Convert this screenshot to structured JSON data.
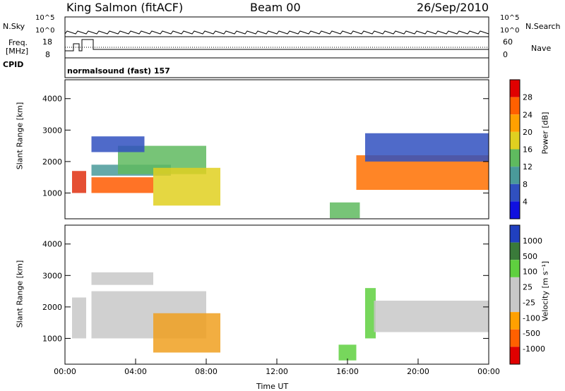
{
  "header": {
    "title": "King Salmon (fitACF)",
    "beam": "Beam 00",
    "date": "26/Sep/2010"
  },
  "strip": {
    "nsky_label": "N.Sky",
    "nsearch_label": "N.Search",
    "freq_label_1": "Freq.",
    "freq_label_2": "[MHz]",
    "nave_label": "Nave",
    "cpid_label": "CPID",
    "cpid_value": "normalsound (fast) 157",
    "nsky_ticks": [
      "10^5",
      "10^0"
    ],
    "nsearch_ticks": [
      "10^5",
      "10^0"
    ],
    "freq_ticks": [
      "18",
      "8"
    ],
    "nave_ticks": [
      "60",
      "0"
    ]
  },
  "chart_data": [
    {
      "type": "heatmap",
      "name": "Power",
      "ylabel": "Slant Range [km]",
      "xlabel": "Time UT",
      "ylim": [
        180,
        4600
      ],
      "xlim_hours": [
        0,
        24
      ],
      "y_ticks": [
        "4000",
        "3000",
        "2000",
        "1000"
      ],
      "y_tick_values": [
        4000,
        3000,
        2000,
        1000
      ],
      "colorbar_label": "Power [dB]",
      "colorbar_ticks": [
        "28",
        "24",
        "20",
        "16",
        "12",
        "8",
        "4"
      ],
      "colorbar_colors": [
        "#e00000",
        "#ff6000",
        "#ffa000",
        "#e0d020",
        "#5fba5f",
        "#4a9a9a",
        "#3050c0",
        "#1010e0"
      ],
      "regions": [
        {
          "t0": 0.4,
          "t1": 1.2,
          "r0": 1000,
          "r1": 1700,
          "color": "#e03010"
        },
        {
          "t0": 1.5,
          "t1": 5.0,
          "r0": 1000,
          "r1": 1500,
          "color": "#ff5a00"
        },
        {
          "t0": 1.5,
          "t1": 6.0,
          "r0": 1550,
          "r1": 1900,
          "color": "#4a9a9a"
        },
        {
          "t0": 3.0,
          "t1": 8.0,
          "r0": 1600,
          "r1": 2500,
          "color": "#5fba5f"
        },
        {
          "t0": 5.0,
          "t1": 8.8,
          "r0": 600,
          "r1": 1800,
          "color": "#e0d020"
        },
        {
          "t0": 1.5,
          "t1": 4.5,
          "r0": 2300,
          "r1": 2800,
          "color": "#3050c0"
        },
        {
          "t0": 15.0,
          "t1": 16.7,
          "r0": 200,
          "r1": 700,
          "color": "#5fba5f"
        },
        {
          "t0": 16.5,
          "t1": 24.0,
          "r0": 1100,
          "r1": 2200,
          "color": "#ff7000"
        },
        {
          "t0": 17.0,
          "t1": 24.0,
          "r0": 2000,
          "r1": 2900,
          "color": "#3050c0"
        }
      ]
    },
    {
      "type": "heatmap",
      "name": "Velocity",
      "ylabel": "Slant Range [km]",
      "xlabel": "Time UT",
      "ylim": [
        180,
        4600
      ],
      "xlim_hours": [
        0,
        24
      ],
      "y_ticks": [
        "4000",
        "3000",
        "2000",
        "1000"
      ],
      "y_tick_values": [
        4000,
        3000,
        2000,
        1000
      ],
      "x_ticks": [
        "00:00",
        "04:00",
        "08:00",
        "12:00",
        "16:00",
        "20:00",
        "00:00"
      ],
      "x_tick_values": [
        0,
        4,
        8,
        12,
        16,
        20,
        24
      ],
      "colorbar_label": "Velocity [m s⁻¹]",
      "colorbar_ticks": [
        "1000",
        "500",
        "100",
        "25",
        "-25",
        "-100",
        "-500",
        "-1000"
      ],
      "colorbar_colors": [
        "#2040c0",
        "#3a7a3a",
        "#5fd03f",
        "#c8c8c8",
        "#c8c8c8",
        "#ffa000",
        "#ff6000",
        "#e00000"
      ],
      "regions": [
        {
          "t0": 0.4,
          "t1": 1.2,
          "r0": 1000,
          "r1": 2300,
          "color": "#c8c8c8"
        },
        {
          "t0": 1.5,
          "t1": 8.0,
          "r0": 1000,
          "r1": 2500,
          "color": "#c8c8c8"
        },
        {
          "t0": 1.5,
          "t1": 5.0,
          "r0": 2700,
          "r1": 3100,
          "color": "#c8c8c8"
        },
        {
          "t0": 5.0,
          "t1": 8.8,
          "r0": 550,
          "r1": 1800,
          "color": "#f0a020"
        },
        {
          "t0": 15.5,
          "t1": 16.5,
          "r0": 300,
          "r1": 800,
          "color": "#5fd03f"
        },
        {
          "t0": 17.0,
          "t1": 17.6,
          "r0": 1000,
          "r1": 2600,
          "color": "#5fd03f"
        },
        {
          "t0": 17.5,
          "t1": 24.0,
          "r0": 1200,
          "r1": 2200,
          "color": "#c8c8c8"
        }
      ]
    }
  ]
}
